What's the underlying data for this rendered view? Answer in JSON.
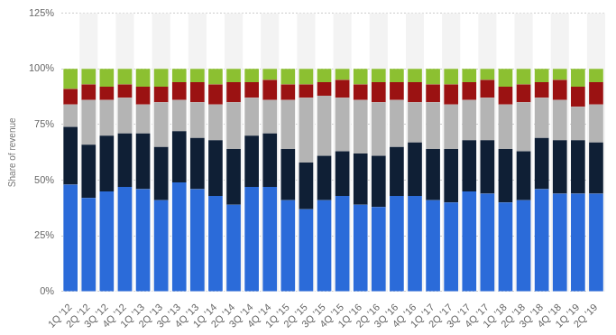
{
  "chart_data": {
    "type": "bar",
    "stacked": true,
    "grid": true,
    "y_label": "Share of revenue",
    "categories": [
      "1Q '12",
      "2Q '12",
      "3Q '12",
      "4Q '12",
      "1Q '13",
      "2Q '13",
      "3Q '13",
      "4Q '13",
      "1Q '14",
      "2Q '14",
      "3Q '14",
      "4Q '14",
      "1Q '15",
      "2Q '15",
      "3Q '15",
      "4Q '15",
      "1Q '16",
      "2Q '16",
      "3Q '16",
      "4Q '16",
      "1Q '17",
      "2Q '17",
      "3Q '17",
      "4Q '17",
      "1Q '18",
      "2Q '18",
      "3Q '18",
      "4Q '18",
      "1Q '19",
      "2Q '19"
    ],
    "series": [
      {
        "color": "#2b6bd9",
        "values": [
          48,
          42,
          45,
          47,
          46,
          41,
          49,
          46,
          43,
          39,
          47,
          47,
          41,
          37,
          41,
          43,
          39,
          38,
          43,
          43,
          41,
          40,
          45,
          44,
          40,
          41,
          46,
          44,
          44,
          44
        ]
      },
      {
        "color": "#0f1f35",
        "values": [
          26,
          24,
          25,
          24,
          25,
          24,
          23,
          23,
          25,
          25,
          23,
          24,
          23,
          21,
          20,
          20,
          23,
          23,
          22,
          24,
          23,
          24,
          23,
          24,
          24,
          22,
          23,
          24,
          24,
          23
        ]
      },
      {
        "color": "#b4b4b4",
        "values": [
          10,
          20,
          16,
          16,
          13,
          20,
          14,
          16,
          16,
          21,
          17,
          15,
          22,
          29,
          27,
          24,
          24,
          24,
          21,
          18,
          21,
          20,
          18,
          19,
          20,
          22,
          18,
          18,
          15,
          17
        ]
      },
      {
        "color": "#9b1212",
        "values": [
          7,
          7,
          6,
          6,
          8,
          7,
          8,
          9,
          9,
          9,
          7,
          9,
          7,
          6,
          6,
          8,
          7,
          9,
          8,
          9,
          8,
          9,
          8,
          8,
          8,
          8,
          7,
          9,
          9,
          10
        ]
      },
      {
        "color": "#8cc031",
        "values": [
          9,
          7,
          8,
          7,
          8,
          8,
          6,
          6,
          7,
          6,
          6,
          5,
          7,
          7,
          6,
          5,
          7,
          6,
          6,
          6,
          7,
          7,
          6,
          5,
          8,
          7,
          6,
          5,
          8,
          6
        ]
      }
    ],
    "ylim": [
      0,
      125
    ],
    "yticks": [
      {
        "value": 0,
        "label": "0%"
      },
      {
        "value": 25,
        "label": "25%"
      },
      {
        "value": 50,
        "label": "50%"
      },
      {
        "value": 75,
        "label": "75%"
      },
      {
        "value": 100,
        "label": "100%"
      },
      {
        "value": 125,
        "label": "125%"
      }
    ]
  }
}
